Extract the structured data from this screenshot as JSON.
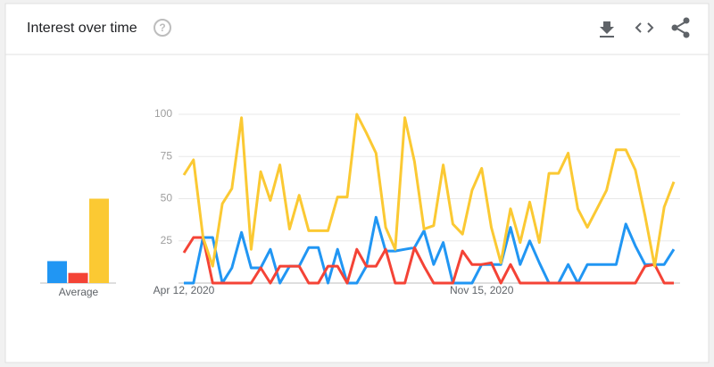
{
  "header": {
    "title": "Interest over time"
  },
  "chart_data": {
    "type": "line",
    "categories": [
      "Apr 12, 2020",
      null,
      null,
      null,
      null,
      null,
      null,
      null,
      null,
      null,
      null,
      null,
      null,
      null,
      null,
      null,
      null,
      null,
      null,
      null,
      null,
      null,
      null,
      null,
      null,
      null,
      null,
      null,
      null,
      null,
      null,
      "Nov 15, 2020",
      null,
      null,
      null,
      null,
      null,
      null,
      null,
      null,
      null,
      null,
      null,
      null,
      null,
      null,
      null,
      null,
      null,
      null,
      null,
      null
    ],
    "series": [
      {
        "color": "#2196f3",
        "values": [
          0,
          0,
          27,
          27,
          0,
          9,
          30,
          9,
          9,
          20,
          0,
          10,
          10,
          21,
          21,
          0,
          20,
          0,
          0,
          10,
          39,
          19,
          19,
          20,
          21,
          31,
          11,
          24,
          0,
          0,
          0,
          11,
          11,
          11,
          33,
          11,
          25,
          12,
          0,
          0,
          11,
          0,
          11,
          11,
          11,
          11,
          35,
          22,
          11,
          11,
          11,
          20
        ]
      },
      {
        "color": "#f44336",
        "values": [
          18,
          27,
          27,
          0,
          0,
          0,
          0,
          0,
          9,
          0,
          10,
          10,
          10,
          0,
          0,
          10,
          10,
          0,
          20,
          10,
          10,
          20,
          0,
          0,
          21,
          10,
          0,
          0,
          0,
          19,
          11,
          11,
          12,
          0,
          11,
          0,
          0,
          0,
          0,
          0,
          0,
          0,
          0,
          0,
          0,
          0,
          0,
          0,
          10,
          11,
          0,
          0
        ]
      },
      {
        "color": "#fbc933",
        "values": [
          64,
          73,
          27,
          10,
          47,
          56,
          98,
          20,
          66,
          49,
          70,
          32,
          52,
          31,
          31,
          31,
          51,
          51,
          100,
          89,
          77,
          33,
          20,
          98,
          72,
          32,
          34,
          70,
          35,
          29,
          55,
          68,
          33,
          12,
          44,
          24,
          48,
          24,
          65,
          65,
          77,
          44,
          33,
          44,
          55,
          79,
          79,
          67,
          40,
          10,
          45,
          60
        ]
      }
    ],
    "average": {
      "label": "Average",
      "values": [
        13,
        6,
        50
      ]
    },
    "ylim": [
      0,
      100
    ],
    "yticks": [
      25,
      50,
      75,
      100
    ],
    "grid": true
  }
}
